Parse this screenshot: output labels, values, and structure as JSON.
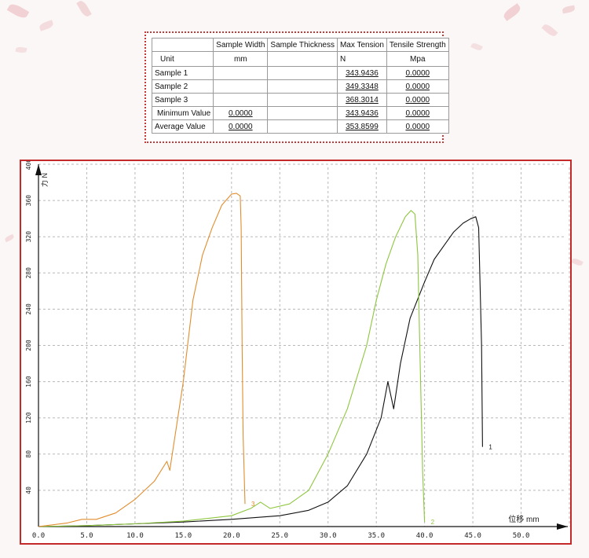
{
  "colors": {
    "frame": "#c52a2a",
    "grid": "#b8b8b8",
    "sample1": "#111111",
    "sample2": "#8ec63f",
    "sample3": "#e28d2d"
  },
  "table": {
    "headers": [
      "",
      "Sample Width",
      "Sample Thickness",
      "Max Tension",
      "Tensile Strength"
    ],
    "rows": [
      [
        "Unit",
        "mm",
        "",
        "N",
        "Mpa"
      ],
      [
        "Sample 1",
        "",
        "",
        "343.9436",
        "0.0000"
      ],
      [
        "Sample 2",
        "",
        "",
        "349.3348",
        "0.0000"
      ],
      [
        "Sample 3",
        "",
        "",
        "368.3014",
        "0.0000"
      ],
      [
        "Minimum Value",
        "0.0000",
        "",
        "343.9436",
        "0.0000"
      ],
      [
        "Average Value",
        "0.0000",
        "",
        "353.8599",
        "0.0000"
      ]
    ]
  },
  "chart_data": {
    "type": "line",
    "xlabel": "位移 mm",
    "ylabel": "力 N",
    "xlim": [
      0,
      55
    ],
    "ylim": [
      0,
      400
    ],
    "xticks": [
      "0.0",
      "5.0",
      "10.0",
      "15.0",
      "20.0",
      "25.0",
      "30.0",
      "35.0",
      "40.0",
      "45.0",
      "50.0"
    ],
    "yticks": [
      "40",
      "80",
      "120",
      "160",
      "200",
      "240",
      "280",
      "320",
      "360",
      "400"
    ],
    "grid": true,
    "series": [
      {
        "name": "1",
        "color_key": "sample1",
        "x": [
          0,
          5,
          10,
          15,
          20,
          25,
          28,
          30,
          32,
          34,
          35.5,
          36.2,
          36.8,
          37.5,
          38.5,
          40,
          41,
          42,
          43,
          44,
          44.8,
          45.3,
          45.6,
          45.9,
          46.0
        ],
        "y": [
          0,
          1,
          3,
          5,
          8,
          12,
          18,
          27,
          45,
          80,
          120,
          160,
          130,
          180,
          230,
          270,
          295,
          310,
          325,
          335,
          340,
          342,
          330,
          200,
          88
        ]
      },
      {
        "name": "2",
        "color_key": "sample2",
        "x": [
          0,
          5,
          10,
          15,
          20,
          22,
          23,
          24,
          26,
          28,
          30,
          32,
          34,
          35,
          36,
          37,
          38,
          38.6,
          39.0,
          39.3,
          39.5,
          39.8,
          40.0
        ],
        "y": [
          0,
          1,
          3,
          6,
          12,
          20,
          27,
          20,
          25,
          40,
          80,
          130,
          200,
          250,
          290,
          320,
          342,
          349,
          345,
          300,
          200,
          60,
          5
        ]
      },
      {
        "name": "3",
        "color_key": "sample3",
        "x": [
          0,
          3,
          4.5,
          6,
          8,
          10,
          12,
          13.3,
          13.6,
          14,
          15,
          16,
          17,
          18,
          19,
          20,
          20.5,
          20.9,
          21.0,
          21.1,
          21.2,
          21.4
        ],
        "y": [
          0,
          4,
          8,
          8,
          15,
          30,
          50,
          72,
          62,
          90,
          160,
          250,
          300,
          330,
          355,
          367,
          368,
          365,
          330,
          200,
          100,
          25
        ]
      }
    ]
  }
}
